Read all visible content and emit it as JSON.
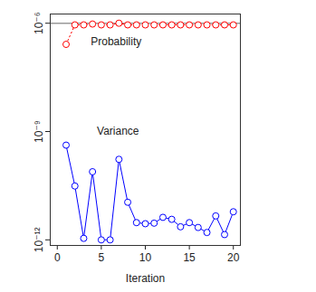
{
  "chart_data": {
    "type": "line",
    "x": [
      1,
      2,
      3,
      4,
      5,
      6,
      7,
      8,
      9,
      10,
      11,
      12,
      13,
      14,
      15,
      16,
      17,
      18,
      19,
      20
    ],
    "series": [
      {
        "name": "Probability",
        "color": "#ff0000",
        "marker": "circle",
        "line_style": "dotted",
        "values": [
          2.6e-07,
          9e-07,
          9e-07,
          9.5e-07,
          9e-07,
          9e-07,
          1e-06,
          9e-07,
          9e-07,
          9e-07,
          9e-07,
          9e-07,
          9e-07,
          9e-07,
          9e-07,
          9e-07,
          9e-07,
          9e-07,
          9e-07,
          9e-07
        ]
      },
      {
        "name": "Variance",
        "color": "#0000ff",
        "marker": "circle",
        "line_style": "solid",
        "values": [
          4.2e-10,
          3.1e-11,
          1.1e-12,
          7.7e-11,
          1e-12,
          1e-12,
          1.7e-10,
          1.1e-11,
          3e-12,
          2.8e-12,
          2.9e-12,
          4.2e-12,
          3.7e-12,
          2.3e-12,
          3e-12,
          2.2e-12,
          1.6e-12,
          4.6e-12,
          1.4e-12,
          6e-12
        ]
      }
    ],
    "annotations": [
      {
        "text": "Probability",
        "x": 3.8,
        "y": 3e-07
      },
      {
        "text": "Variance",
        "x": 4.5,
        "y": 1e-09
      }
    ],
    "hline": 1e-06,
    "x_label": "Iteration",
    "xlim": [
      -0.8,
      20.8
    ],
    "xticks": [
      0,
      5,
      10,
      15,
      20
    ],
    "ylim": [
      7e-13,
      1.8e-06
    ],
    "yticks": [
      {
        "value": 1e-12,
        "label": "10⁻¹²"
      },
      {
        "value": 1e-09,
        "label": "10⁻⁹"
      },
      {
        "value": 1e-06,
        "label": "10⁻⁶"
      }
    ],
    "log": "y",
    "grid": false
  }
}
